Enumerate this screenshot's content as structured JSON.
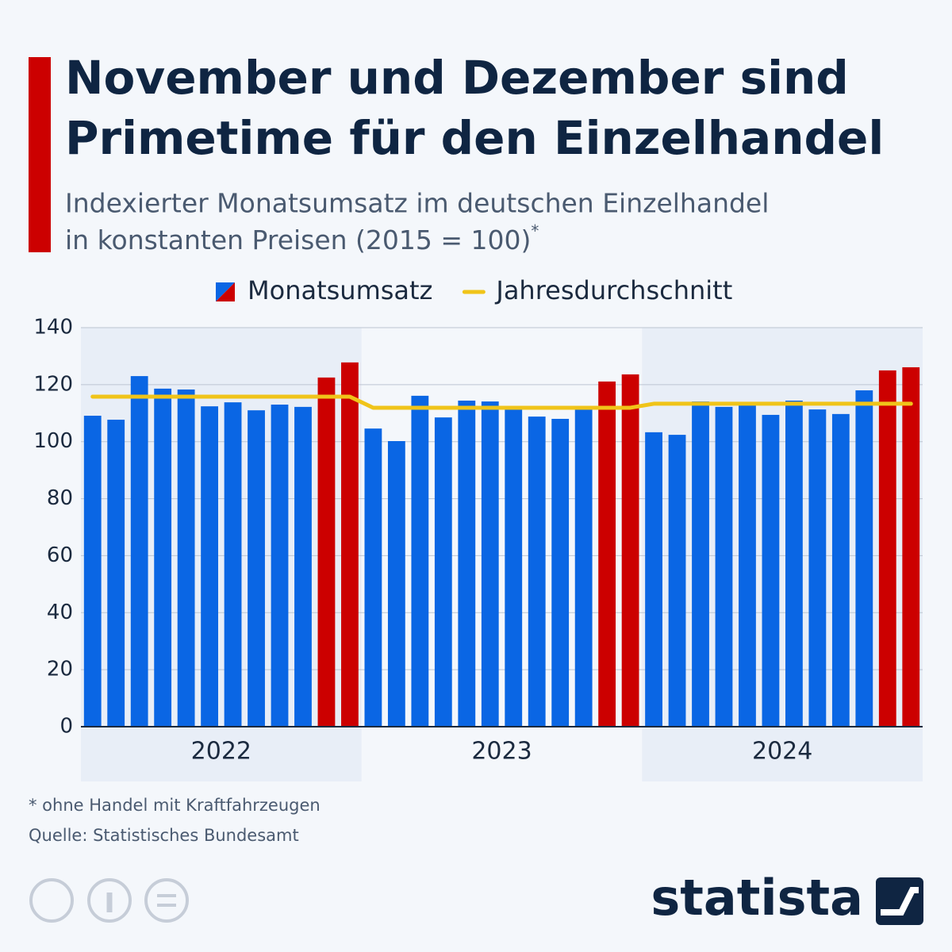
{
  "chart_data": {
    "type": "bar",
    "title": [
      "November und Dezember sind",
      "Primetime für den Einzelhandel"
    ],
    "subtitle": [
      "Indexierter Monatsumsatz im deutschen Einzelhandel",
      "in konstanten Preisen (2015 = 100)"
    ],
    "subtitle_mark": "*",
    "categories": [
      null,
      null,
      null,
      null,
      null,
      null,
      null,
      null,
      null,
      null,
      null,
      null,
      null,
      null,
      null,
      null,
      null,
      null,
      null,
      null,
      null,
      null,
      null,
      null,
      null,
      null,
      null,
      null,
      null,
      null,
      null,
      null,
      null,
      null,
      null,
      null
    ],
    "year_groups": [
      {
        "label": "2022",
        "shaded": true
      },
      {
        "label": "2023",
        "shaded": false
      },
      {
        "label": "2024",
        "shaded": true
      }
    ],
    "series": [
      {
        "name": "Monatsumsatz",
        "type": "bar",
        "values": [
          109.1,
          107.7,
          123,
          118.6,
          118.3,
          112.4,
          113.8,
          111,
          113,
          112.2,
          122.5,
          127.8,
          104.6,
          100.2,
          116.1,
          108.5,
          114.4,
          114.1,
          112.2,
          108.8,
          108,
          111.9,
          121.1,
          123.6,
          103.3,
          102.4,
          114.1,
          112.2,
          113.8,
          109.4,
          114.4,
          111.3,
          109.7,
          118,
          125,
          126.1
        ],
        "colors": [
          "#0a66e4",
          "#0a66e4",
          "#0a66e4",
          "#0a66e4",
          "#0a66e4",
          "#0a66e4",
          "#0a66e4",
          "#0a66e4",
          "#0a66e4",
          "#0a66e4",
          "#cc0000",
          "#cc0000",
          "#0a66e4",
          "#0a66e4",
          "#0a66e4",
          "#0a66e4",
          "#0a66e4",
          "#0a66e4",
          "#0a66e4",
          "#0a66e4",
          "#0a66e4",
          "#0a66e4",
          "#cc0000",
          "#cc0000",
          "#0a66e4",
          "#0a66e4",
          "#0a66e4",
          "#0a66e4",
          "#0a66e4",
          "#0a66e4",
          "#0a66e4",
          "#0a66e4",
          "#0a66e4",
          "#0a66e4",
          "#cc0000",
          "#cc0000"
        ]
      },
      {
        "name": "Jahresdurchschnitt",
        "type": "line",
        "color": "#f0c419",
        "values": [
          115.8,
          115.8,
          115.8,
          115.8,
          115.8,
          115.8,
          115.8,
          115.8,
          115.8,
          115.8,
          115.8,
          115.8,
          111.9,
          111.9,
          111.9,
          111.9,
          111.9,
          111.9,
          111.9,
          111.9,
          111.9,
          111.9,
          111.9,
          111.9,
          113.3,
          113.3,
          113.3,
          113.3,
          113.3,
          113.3,
          113.3,
          113.3,
          113.3,
          113.3,
          113.3,
          113.3
        ]
      }
    ],
    "ylim": [
      0,
      140
    ],
    "yticks": [
      0,
      20,
      40,
      60,
      80,
      100,
      120,
      140
    ],
    "grid": true,
    "notes": [
      "* ohne Handel mit Kraftfahrzeugen",
      "Quelle: Statistisches Bundesamt"
    ],
    "brand": "statista"
  }
}
